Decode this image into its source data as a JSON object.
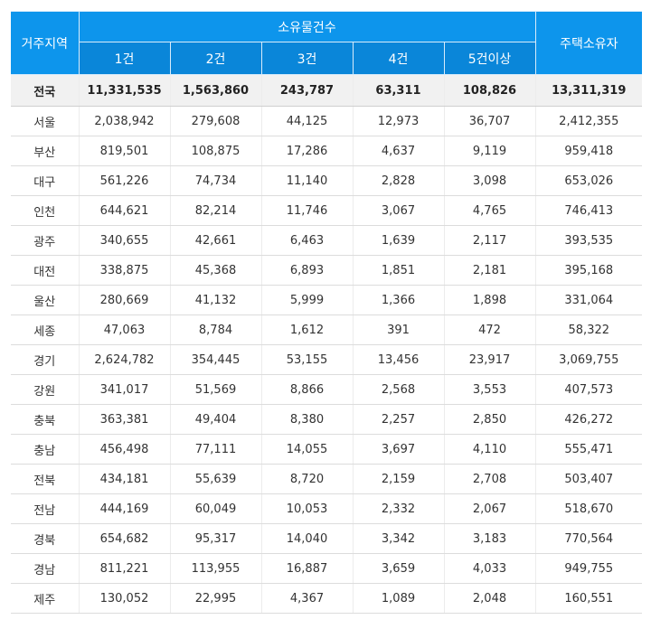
{
  "table": {
    "header": {
      "region": "거주지역",
      "group": "소유물건수",
      "owners": "주택소유자",
      "sub": [
        "1건",
        "2건",
        "3건",
        "4건",
        "5건이상"
      ]
    },
    "rows": [
      {
        "region": "전국",
        "c1": "11,331,535",
        "c2": "1,563,860",
        "c3": "243,787",
        "c4": "63,311",
        "c5": "108,826",
        "total": "13,311,319"
      },
      {
        "region": "서울",
        "c1": "2,038,942",
        "c2": "279,608",
        "c3": "44,125",
        "c4": "12,973",
        "c5": "36,707",
        "total": "2,412,355"
      },
      {
        "region": "부산",
        "c1": "819,501",
        "c2": "108,875",
        "c3": "17,286",
        "c4": "4,637",
        "c5": "9,119",
        "total": "959,418"
      },
      {
        "region": "대구",
        "c1": "561,226",
        "c2": "74,734",
        "c3": "11,140",
        "c4": "2,828",
        "c5": "3,098",
        "total": "653,026"
      },
      {
        "region": "인천",
        "c1": "644,621",
        "c2": "82,214",
        "c3": "11,746",
        "c4": "3,067",
        "c5": "4,765",
        "total": "746,413"
      },
      {
        "region": "광주",
        "c1": "340,655",
        "c2": "42,661",
        "c3": "6,463",
        "c4": "1,639",
        "c5": "2,117",
        "total": "393,535"
      },
      {
        "region": "대전",
        "c1": "338,875",
        "c2": "45,368",
        "c3": "6,893",
        "c4": "1,851",
        "c5": "2,181",
        "total": "395,168"
      },
      {
        "region": "울산",
        "c1": "280,669",
        "c2": "41,132",
        "c3": "5,999",
        "c4": "1,366",
        "c5": "1,898",
        "total": "331,064"
      },
      {
        "region": "세종",
        "c1": "47,063",
        "c2": "8,784",
        "c3": "1,612",
        "c4": "391",
        "c5": "472",
        "total": "58,322"
      },
      {
        "region": "경기",
        "c1": "2,624,782",
        "c2": "354,445",
        "c3": "53,155",
        "c4": "13,456",
        "c5": "23,917",
        "total": "3,069,755"
      },
      {
        "region": "강원",
        "c1": "341,017",
        "c2": "51,569",
        "c3": "8,866",
        "c4": "2,568",
        "c5": "3,553",
        "total": "407,573"
      },
      {
        "region": "충북",
        "c1": "363,381",
        "c2": "49,404",
        "c3": "8,380",
        "c4": "2,257",
        "c5": "2,850",
        "total": "426,272"
      },
      {
        "region": "충남",
        "c1": "456,498",
        "c2": "77,111",
        "c3": "14,055",
        "c4": "3,697",
        "c5": "4,110",
        "total": "555,471"
      },
      {
        "region": "전북",
        "c1": "434,181",
        "c2": "55,639",
        "c3": "8,720",
        "c4": "2,159",
        "c5": "2,708",
        "total": "503,407"
      },
      {
        "region": "전남",
        "c1": "444,169",
        "c2": "60,049",
        "c3": "10,053",
        "c4": "2,332",
        "c5": "2,067",
        "total": "518,670"
      },
      {
        "region": "경북",
        "c1": "654,682",
        "c2": "95,317",
        "c3": "14,040",
        "c4": "3,342",
        "c5": "3,183",
        "total": "770,564"
      },
      {
        "region": "경남",
        "c1": "811,221",
        "c2": "113,955",
        "c3": "16,887",
        "c4": "3,659",
        "c5": "4,033",
        "total": "949,755"
      },
      {
        "region": "제주",
        "c1": "130,052",
        "c2": "22,995",
        "c3": "4,367",
        "c4": "1,089",
        "c5": "2,048",
        "total": "160,551"
      }
    ]
  },
  "colors": {
    "header_primary": "#0d95ec",
    "header_secondary": "#0a86d9",
    "total_row_bg": "#f1f1f1"
  }
}
